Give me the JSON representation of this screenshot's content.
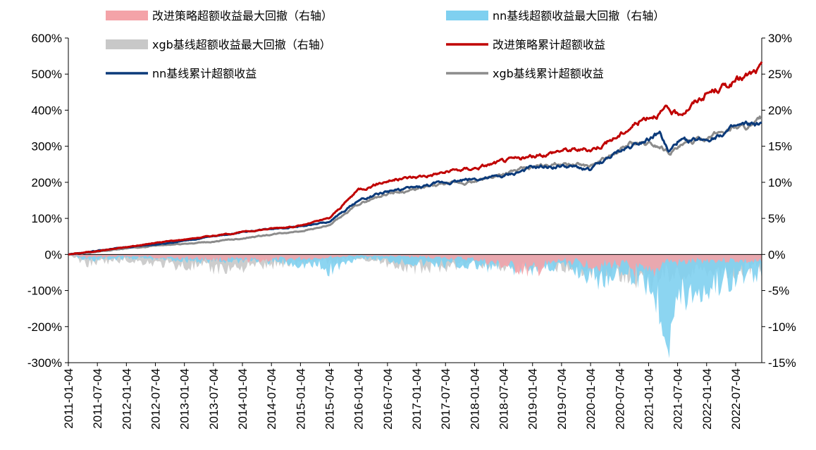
{
  "chart_data": {
    "type": "line",
    "title": "",
    "xlabel": "",
    "ylabel": "",
    "ylim_left": [
      -300,
      600
    ],
    "ylim_right": [
      -15,
      30
    ],
    "left_ticks": [
      "600%",
      "500%",
      "400%",
      "300%",
      "200%",
      "100%",
      "0%",
      "-100%",
      "-200%",
      "-300%"
    ],
    "right_ticks": [
      "30%",
      "25%",
      "20%",
      "15%",
      "10%",
      "5%",
      "0%",
      "-5%",
      "-10%",
      "-15%"
    ],
    "x_ticks": [
      "2011-01-04",
      "2011-07-04",
      "2012-01-04",
      "2012-07-04",
      "2013-01-04",
      "2013-07-04",
      "2014-01-04",
      "2014-07-04",
      "2015-01-04",
      "2015-07-04",
      "2016-01-04",
      "2016-07-04",
      "2017-01-04",
      "2017-07-04",
      "2018-01-04",
      "2018-07-04",
      "2019-01-04",
      "2019-07-04",
      "2020-01-04",
      "2020-07-04",
      "2021-01-04",
      "2021-07-04",
      "2022-01-04",
      "2022-07-04"
    ],
    "x_range_years": [
      2011.0,
      2022.95
    ],
    "legend": [
      {
        "label": "改进策略超额收益最大回撤（右轴）",
        "color": "#f4a3a8",
        "kind": "area"
      },
      {
        "label": "nn基线超额收益最大回撤（右轴）",
        "color": "#7fd0f0",
        "kind": "area"
      },
      {
        "label": "xgb基线超额收益最大回撤（右轴）",
        "color": "#c8c8c8",
        "kind": "area"
      },
      {
        "label": "改进策略累计超额收益",
        "color": "#c00000",
        "kind": "line"
      },
      {
        "label": "nn基线累计超额收益",
        "color": "#0b3a7a",
        "kind": "line"
      },
      {
        "label": "xgb基线累计超额收益",
        "color": "#8c8c8c",
        "kind": "line"
      }
    ],
    "series": [
      {
        "name": "改进策略累计超额收益",
        "axis": "left",
        "color": "#c00000",
        "x": [
          2011.0,
          2011.5,
          2012.0,
          2012.5,
          2013.0,
          2013.5,
          2014.0,
          2014.5,
          2015.0,
          2015.5,
          2016.0,
          2016.5,
          2017.0,
          2017.5,
          2018.0,
          2018.5,
          2019.0,
          2019.5,
          2020.0,
          2020.5,
          2020.7,
          2021.0,
          2021.3,
          2021.5,
          2021.7,
          2022.0,
          2022.5,
          2022.8,
          2022.95
        ],
        "y": [
          0,
          10,
          20,
          32,
          42,
          52,
          62,
          72,
          80,
          100,
          180,
          205,
          215,
          228,
          240,
          258,
          270,
          290,
          290,
          330,
          355,
          385,
          400,
          385,
          410,
          445,
          480,
          500,
          515
        ]
      },
      {
        "name": "nn基线累计超额收益",
        "axis": "left",
        "color": "#0b3a7a",
        "x": [
          2011.0,
          2011.5,
          2012.0,
          2012.5,
          2013.0,
          2013.5,
          2014.0,
          2014.5,
          2015.0,
          2015.5,
          2016.0,
          2016.5,
          2017.0,
          2017.5,
          2018.0,
          2018.5,
          2019.0,
          2019.5,
          2020.0,
          2020.5,
          2020.7,
          2021.0,
          2021.2,
          2021.35,
          2021.5,
          2022.0,
          2022.5,
          2022.8,
          2022.95
        ],
        "y": [
          0,
          10,
          20,
          28,
          38,
          50,
          62,
          72,
          78,
          90,
          150,
          175,
          185,
          200,
          210,
          215,
          240,
          245,
          235,
          285,
          300,
          325,
          335,
          280,
          310,
          320,
          350,
          360,
          355
        ]
      },
      {
        "name": "xgb基线累计超额收益",
        "axis": "left",
        "color": "#8c8c8c",
        "x": [
          2011.0,
          2011.5,
          2012.0,
          2012.5,
          2013.0,
          2013.5,
          2014.0,
          2014.5,
          2015.0,
          2015.5,
          2016.0,
          2016.5,
          2017.0,
          2017.5,
          2018.0,
          2018.5,
          2019.0,
          2019.5,
          2020.0,
          2020.5,
          2020.7,
          2021.0,
          2021.2,
          2021.35,
          2021.5,
          2022.0,
          2022.5,
          2022.8,
          2022.95
        ],
        "y": [
          0,
          8,
          16,
          24,
          30,
          35,
          45,
          55,
          65,
          80,
          140,
          170,
          180,
          195,
          200,
          225,
          240,
          255,
          245,
          285,
          310,
          305,
          300,
          285,
          295,
          325,
          355,
          355,
          375
        ]
      },
      {
        "name": "改进策略超额收益最大回撤（右轴）",
        "axis": "right",
        "color": "#f4a3a8",
        "x": [
          2011.0,
          2011.3,
          2012.0,
          2013.5,
          2014.2,
          2015.3,
          2015.45,
          2016.0,
          2017.0,
          2018.0,
          2019.0,
          2019.5,
          2020.2,
          2020.5,
          2021.0,
          2021.3,
          2021.5,
          2022.0,
          2022.5,
          2022.95
        ],
        "y": [
          0,
          -0.5,
          -0.3,
          -0.8,
          -1.0,
          -0.6,
          -0.5,
          -0.2,
          -0.4,
          -0.8,
          -3.0,
          -1.0,
          -2.0,
          -1.5,
          -4.0,
          -1.0,
          -1.5,
          -1.0,
          -1.0,
          -1.5
        ]
      },
      {
        "name": "nn基线超额收益最大回撤（右轴）",
        "axis": "right",
        "color": "#7fd0f0",
        "x": [
          2011.0,
          2011.3,
          2012.0,
          2013.5,
          2014.2,
          2015.3,
          2015.45,
          2016.0,
          2017.0,
          2018.0,
          2019.0,
          2019.5,
          2020.2,
          2020.5,
          2021.0,
          2021.3,
          2021.35,
          2021.5,
          2022.0,
          2022.5,
          2022.95
        ],
        "y": [
          0,
          -1.0,
          -0.6,
          -1.2,
          -1.0,
          -2.0,
          -3.0,
          -0.5,
          -1.5,
          -2.0,
          -2.5,
          -2.0,
          -4.5,
          -2.5,
          -5.0,
          -12.0,
          -13.0,
          -8.0,
          -6.0,
          -4.0,
          -3.0
        ]
      },
      {
        "name": "xgb基线超额收益最大回撤（右轴）",
        "axis": "right",
        "color": "#c8c8c8",
        "x": [
          2011.0,
          2011.3,
          2012.0,
          2013.5,
          2014.2,
          2015.3,
          2015.45,
          2016.0,
          2017.0,
          2018.0,
          2019.0,
          2019.5,
          2020.2,
          2020.5,
          2021.0,
          2021.3,
          2021.5,
          2022.0,
          2022.5,
          2022.95
        ],
        "y": [
          0,
          -1.5,
          -1.0,
          -2.5,
          -2.0,
          -1.0,
          -1.5,
          -0.5,
          -2.5,
          -1.5,
          -2.5,
          -2.0,
          -3.0,
          -3.0,
          -4.5,
          -3.0,
          -3.5,
          -2.5,
          -3.0,
          -2.0
        ]
      }
    ]
  }
}
